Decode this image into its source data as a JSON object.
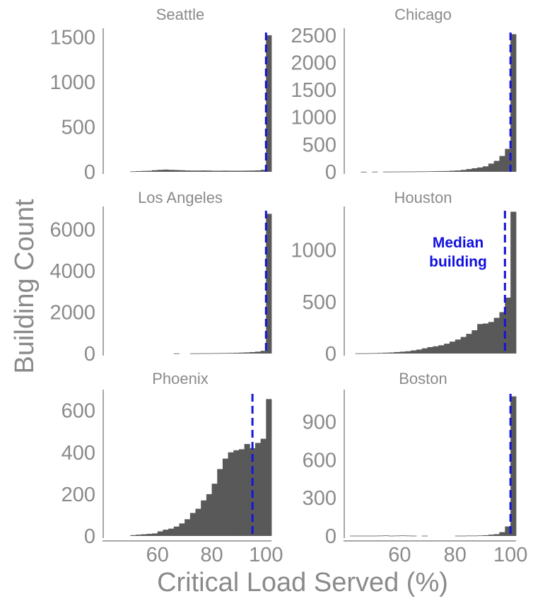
{
  "figure": {
    "xlabel": "Critical Load Served (%)",
    "ylabel": "Building Count"
  },
  "colors": {
    "bar": "#595959",
    "median_line": "#1515d6",
    "axis": "#8a8a8a",
    "text": "#8a8a8a"
  },
  "chart_data": [
    {
      "type": "bar",
      "title": "Seattle",
      "xlabel": "",
      "ylabel": "",
      "xlim": [
        40,
        102
      ],
      "ylim": [
        0,
        1550
      ],
      "yticks": [
        0,
        500,
        1000,
        1500
      ],
      "xticks": [],
      "bin_width": 2,
      "bins": [
        50,
        52,
        54,
        56,
        58,
        60,
        62,
        64,
        66,
        68,
        70,
        72,
        74,
        76,
        78,
        80,
        82,
        84,
        86,
        88,
        90,
        92,
        94,
        96,
        98,
        100
      ],
      "values": [
        5,
        8,
        10,
        12,
        18,
        22,
        25,
        22,
        20,
        18,
        15,
        14,
        14,
        15,
        14,
        12,
        12,
        13,
        12,
        12,
        12,
        13,
        14,
        16,
        22,
        1520
      ],
      "median": 100
    },
    {
      "type": "bar",
      "title": "Chicago",
      "xlabel": "",
      "ylabel": "",
      "xlim": [
        40,
        102
      ],
      "ylim": [
        0,
        2550
      ],
      "yticks": [
        0,
        500,
        1000,
        1500,
        2000,
        2500
      ],
      "xticks": [],
      "bin_width": 2,
      "bins": [
        46,
        48,
        50,
        52,
        54,
        56,
        58,
        60,
        62,
        64,
        66,
        68,
        70,
        72,
        74,
        76,
        78,
        80,
        82,
        84,
        86,
        88,
        90,
        92,
        94,
        96,
        98,
        100
      ],
      "values": [
        1,
        0,
        2,
        0,
        3,
        3,
        4,
        5,
        5,
        6,
        8,
        8,
        10,
        12,
        14,
        15,
        20,
        25,
        35,
        50,
        65,
        80,
        100,
        150,
        200,
        290,
        420,
        2520
      ],
      "median": 100
    },
    {
      "type": "bar",
      "title": "Los Angeles",
      "xlabel": "",
      "ylabel": "",
      "xlim": [
        40,
        102
      ],
      "ylim": [
        0,
        6900
      ],
      "yticks": [
        0,
        2000,
        4000,
        6000
      ],
      "xticks": [],
      "bin_width": 2,
      "bins": [
        66,
        68,
        70,
        72,
        74,
        76,
        78,
        80,
        82,
        84,
        86,
        88,
        90,
        92,
        94,
        96,
        98,
        100
      ],
      "values": [
        5,
        0,
        0,
        8,
        10,
        12,
        14,
        18,
        20,
        25,
        30,
        35,
        45,
        55,
        70,
        90,
        130,
        6750
      ],
      "median": 100
    },
    {
      "type": "bar",
      "title": "Houston",
      "xlabel": "",
      "ylabel": "",
      "xlim": [
        40,
        102
      ],
      "ylim": [
        0,
        1380
      ],
      "yticks": [
        0,
        500,
        1000
      ],
      "xticks": [],
      "bin_width": 2,
      "bins": [
        44,
        46,
        48,
        50,
        52,
        54,
        56,
        58,
        60,
        62,
        64,
        66,
        68,
        70,
        72,
        74,
        76,
        78,
        80,
        82,
        84,
        86,
        88,
        90,
        92,
        94,
        96,
        98,
        100
      ],
      "values": [
        2,
        2,
        3,
        4,
        6,
        8,
        10,
        14,
        18,
        22,
        30,
        38,
        50,
        62,
        70,
        80,
        95,
        115,
        135,
        160,
        190,
        225,
        285,
        290,
        305,
        345,
        400,
        540,
        1370
      ],
      "median": 98,
      "annotation": "Median building"
    },
    {
      "type": "bar",
      "title": "Phoenix",
      "xlabel": "",
      "ylabel": "",
      "xlim": [
        40,
        102
      ],
      "ylim": [
        0,
        680
      ],
      "yticks": [
        0,
        200,
        400,
        600
      ],
      "xticks": [
        60,
        80,
        100
      ],
      "bin_width": 2,
      "bins": [
        50,
        52,
        54,
        56,
        58,
        60,
        62,
        64,
        66,
        68,
        70,
        72,
        74,
        76,
        78,
        80,
        82,
        84,
        86,
        88,
        90,
        92,
        94,
        96,
        98,
        100
      ],
      "values": [
        4,
        6,
        8,
        10,
        12,
        22,
        30,
        35,
        45,
        60,
        80,
        110,
        130,
        170,
        200,
        250,
        320,
        370,
        400,
        410,
        415,
        440,
        420,
        445,
        465,
        655
      ],
      "median": 95
    },
    {
      "type": "bar",
      "title": "Boston",
      "xlabel": "",
      "ylabel": "",
      "xlim": [
        40,
        102
      ],
      "ylim": [
        0,
        1120
      ],
      "yticks": [
        0,
        300,
        600,
        900
      ],
      "xticks": [
        60,
        80,
        100
      ],
      "bin_width": 2,
      "bins": [
        42,
        44,
        46,
        48,
        50,
        52,
        54,
        56,
        58,
        60,
        62,
        64,
        66,
        68,
        70,
        72,
        74,
        76,
        78,
        80,
        82,
        84,
        86,
        88,
        90,
        92,
        94,
        96,
        98,
        100
      ],
      "values": [
        2,
        2,
        2,
        2,
        2,
        3,
        4,
        2,
        3,
        4,
        3,
        2,
        0,
        2,
        0,
        0,
        0,
        0,
        0,
        2,
        2,
        3,
        3,
        4,
        6,
        10,
        14,
        30,
        75,
        1100
      ],
      "median": 100
    }
  ]
}
